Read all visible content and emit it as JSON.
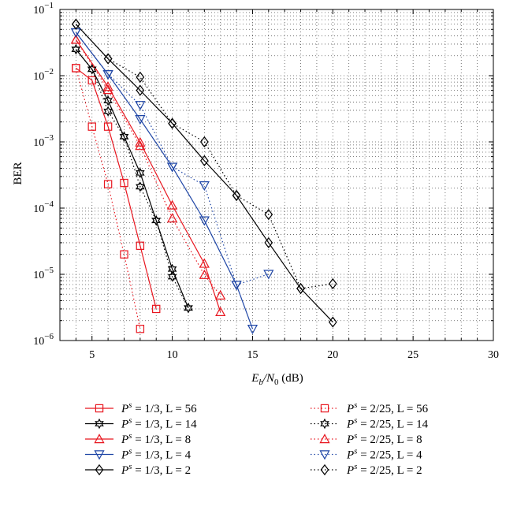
{
  "chart_data": {
    "type": "line",
    "xlabel": "E_b/N_0 (dB)",
    "xlabel_parts": {
      "main": "E",
      "sub1": "b",
      "slash": "/N",
      "sub2": "0",
      "unit": " (dB)"
    },
    "ylabel": "BER",
    "xlim": [
      3,
      30
    ],
    "ylim": [
      1e-06,
      0.1
    ],
    "yscale": "log",
    "grid": true,
    "legend_position": "bottom",
    "x_ticks": [
      5,
      10,
      15,
      20,
      25,
      30
    ],
    "x_tick_labels": [
      "5",
      "10",
      "15",
      "20",
      "25",
      "30"
    ],
    "y_ticks": [
      1e-06,
      1e-05,
      0.0001,
      0.001,
      0.01,
      0.1
    ],
    "y_tick_labels": [
      {
        "base": "10",
        "exp": "−6"
      },
      {
        "base": "10",
        "exp": "−5"
      },
      {
        "base": "10",
        "exp": "−4"
      },
      {
        "base": "10",
        "exp": "−3"
      },
      {
        "base": "10",
        "exp": "−2"
      },
      {
        "base": "10",
        "exp": "−1"
      }
    ],
    "series": [
      {
        "name": "P^s = 1/3, L = 56",
        "label": {
          "eq": " = 1/3, L = 56"
        },
        "color": "#e8161f",
        "marker": "square",
        "line": "solid",
        "x": [
          4,
          5,
          6,
          7,
          8,
          9
        ],
        "y": [
          0.013,
          0.0085,
          0.0017,
          0.00024,
          2.7e-05,
          3e-06
        ]
      },
      {
        "name": "P^s = 1/3, L = 14",
        "label": {
          "eq": " = 1/3, L = 14"
        },
        "color": "#000000",
        "marker": "hexagram",
        "line": "solid",
        "x": [
          4,
          5,
          6,
          7,
          8,
          9,
          10,
          11
        ],
        "y": [
          0.025,
          0.0125,
          0.0042,
          0.0012,
          0.00034,
          6.5e-05,
          1.2e-05,
          3.1e-06
        ]
      },
      {
        "name": "P^s = 1/3, L = 8",
        "label": {
          "eq": " = 1/3, L = 8"
        },
        "color": "#e8161f",
        "marker": "triangle-up",
        "line": "solid",
        "x": [
          4,
          6,
          8,
          10,
          12,
          13
        ],
        "y": [
          0.035,
          0.0068,
          0.00098,
          0.00011,
          1.45e-05,
          2.7e-06
        ]
      },
      {
        "name": "P^s = 1/3, L = 4",
        "label": {
          "eq": " = 1/3, L = 4"
        },
        "color": "#1f46a6",
        "marker": "triangle-down",
        "line": "solid",
        "x": [
          4,
          6,
          8,
          10,
          12,
          14,
          15
        ],
        "y": [
          0.045,
          0.0105,
          0.0022,
          0.00042,
          6.5e-05,
          6.9e-06,
          1.5e-06
        ]
      },
      {
        "name": "P^s = 1/3, L = 2",
        "label": {
          "eq": " = 1/3, L = 2"
        },
        "color": "#000000",
        "marker": "diamond",
        "line": "solid",
        "x": [
          4,
          6,
          8,
          10,
          12,
          14,
          16,
          18,
          20
        ],
        "y": [
          0.06,
          0.018,
          0.006,
          0.0019,
          0.00052,
          0.000155,
          3e-05,
          6.1e-06,
          1.9e-06
        ]
      },
      {
        "name": "P^s = 2/25, L = 56",
        "label": {
          "eq": " = 2/25, L = 56"
        },
        "color": "#e8161f",
        "marker": "square",
        "line": "dotted",
        "x": [
          4,
          5,
          6,
          7,
          8
        ],
        "y": [
          0.013,
          0.0017,
          0.00023,
          2e-05,
          1.5e-06
        ]
      },
      {
        "name": "P^s = 2/25, L = 14",
        "label": {
          "eq": " = 2/25, L = 14"
        },
        "color": "#000000",
        "marker": "hexagram",
        "line": "dotted",
        "x": [
          4,
          5,
          6,
          7,
          8,
          9,
          10,
          11
        ],
        "y": [
          0.025,
          0.0125,
          0.0029,
          0.0012,
          0.00021,
          6.5e-05,
          9.2e-06,
          3.1e-06
        ]
      },
      {
        "name": "P^s = 2/25, L = 8",
        "label": {
          "eq": " = 2/25, L = 8"
        },
        "color": "#e8161f",
        "marker": "triangle-up",
        "line": "dotted",
        "x": [
          4,
          6,
          8,
          10,
          12,
          13
        ],
        "y": [
          0.035,
          0.0061,
          0.00087,
          7e-05,
          9.8e-06,
          4.8e-06
        ]
      },
      {
        "name": "P^s = 2/25, L = 4",
        "label": {
          "eq": " = 2/25, L = 4"
        },
        "color": "#1f46a6",
        "marker": "triangle-down",
        "line": "dotted",
        "x": [
          4,
          6,
          8,
          10,
          12,
          14,
          16
        ],
        "y": [
          0.045,
          0.0105,
          0.0036,
          0.00042,
          0.00022,
          6.9e-06,
          1.01e-05
        ]
      },
      {
        "name": "P^s = 2/25, L = 2",
        "label": {
          "eq": " = 2/25, L = 2"
        },
        "color": "#000000",
        "marker": "diamond",
        "line": "dotted",
        "x": [
          4,
          6,
          8,
          10,
          12,
          14,
          16,
          18,
          20
        ],
        "y": [
          0.06,
          0.018,
          0.0095,
          0.0019,
          0.001,
          0.000155,
          8e-05,
          6.1e-06,
          7.2e-06
        ]
      }
    ]
  }
}
